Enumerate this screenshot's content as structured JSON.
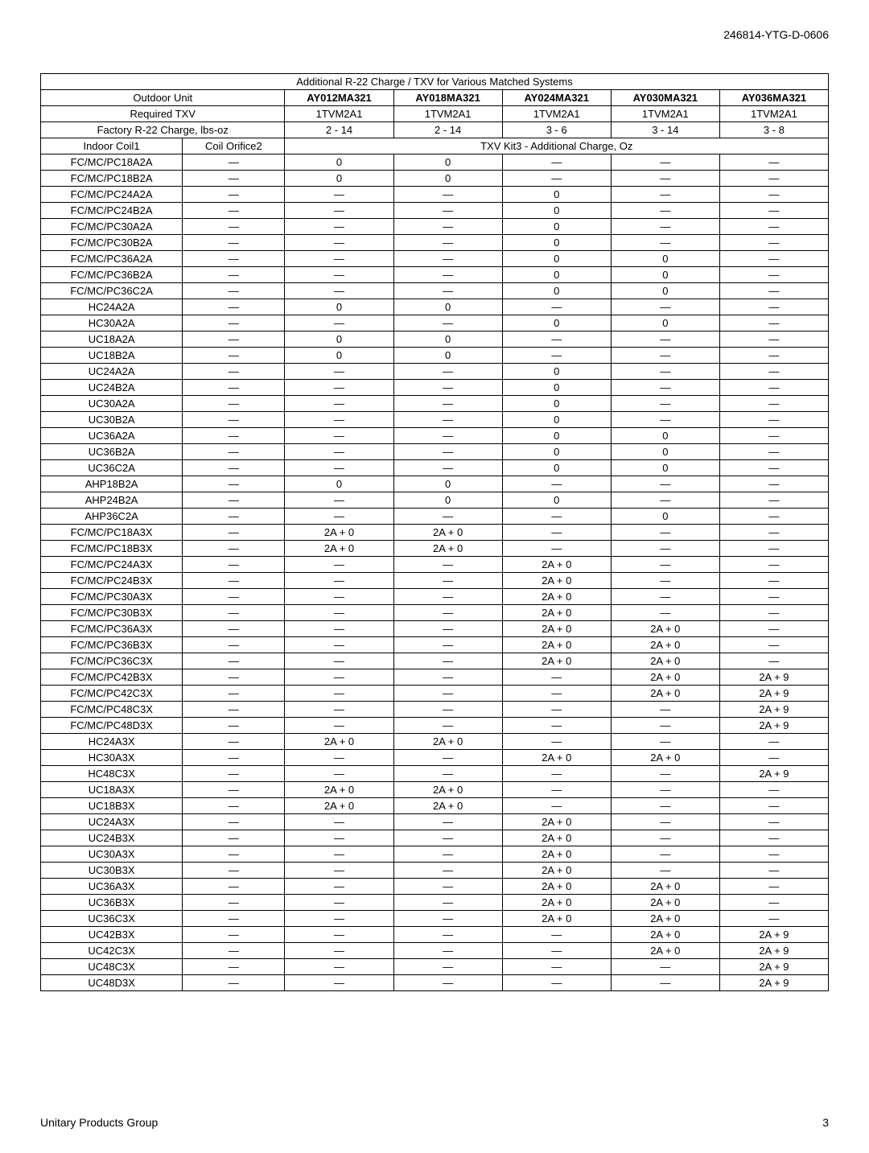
{
  "docId": "246814-YTG-D-0606",
  "footerLeft": "Unitary Products Group",
  "footerRight": "3",
  "dash": "—",
  "table": {
    "title": "Additional R-22 Charge / TXV for Various Matched Systems",
    "headerRows": [
      {
        "label": "Outdoor Unit",
        "cells": [
          "AY012MA321",
          "AY018MA321",
          "AY024MA321",
          "AY030MA321",
          "AY036MA321"
        ],
        "bold": true
      },
      {
        "label": "Required TXV",
        "cells": [
          "1TVM2A1",
          "1TVM2A1",
          "1TVM2A1",
          "1TVM2A1",
          "1TVM2A1"
        ],
        "bold": false
      },
      {
        "label": "Factory R-22 Charge, lbs-oz",
        "cells": [
          "2 - 14",
          "2 - 14",
          "3 - 6",
          "3 - 14",
          "3 - 8"
        ],
        "bold": false
      }
    ],
    "groupHeader": {
      "left": "Indoor Coil1",
      "mid": "Coil Orifice2",
      "right": "TXV Kit3 - Additional Charge, Oz"
    },
    "rows": [
      {
        "coil": "FC/MC/PC18A2A",
        "c": [
          "—",
          "0",
          "0",
          "—",
          "—",
          "—"
        ]
      },
      {
        "coil": "FC/MC/PC18B2A",
        "c": [
          "—",
          "0",
          "0",
          "—",
          "—",
          "—"
        ]
      },
      {
        "coil": "FC/MC/PC24A2A",
        "c": [
          "—",
          "—",
          "—",
          "0",
          "—",
          "—"
        ]
      },
      {
        "coil": "FC/MC/PC24B2A",
        "c": [
          "—",
          "—",
          "—",
          "0",
          "—",
          "—"
        ]
      },
      {
        "coil": "FC/MC/PC30A2A",
        "c": [
          "—",
          "—",
          "—",
          "0",
          "—",
          "—"
        ]
      },
      {
        "coil": "FC/MC/PC30B2A",
        "c": [
          "—",
          "—",
          "—",
          "0",
          "—",
          "—"
        ]
      },
      {
        "coil": "FC/MC/PC36A2A",
        "c": [
          "—",
          "—",
          "—",
          "0",
          "0",
          "—"
        ]
      },
      {
        "coil": "FC/MC/PC36B2A",
        "c": [
          "—",
          "—",
          "—",
          "0",
          "0",
          "—"
        ]
      },
      {
        "coil": "FC/MC/PC36C2A",
        "c": [
          "—",
          "—",
          "—",
          "0",
          "0",
          "—"
        ]
      },
      {
        "coil": "HC24A2A",
        "c": [
          "—",
          "0",
          "0",
          "—",
          "—",
          "—"
        ]
      },
      {
        "coil": "HC30A2A",
        "c": [
          "—",
          "—",
          "—",
          "0",
          "0",
          "—"
        ]
      },
      {
        "coil": "UC18A2A",
        "c": [
          "—",
          "0",
          "0",
          "—",
          "—",
          "—"
        ]
      },
      {
        "coil": "UC18B2A",
        "c": [
          "—",
          "0",
          "0",
          "—",
          "—",
          "—"
        ]
      },
      {
        "coil": "UC24A2A",
        "c": [
          "—",
          "—",
          "—",
          "0",
          "—",
          "—"
        ]
      },
      {
        "coil": "UC24B2A",
        "c": [
          "—",
          "—",
          "—",
          "0",
          "—",
          "—"
        ]
      },
      {
        "coil": "UC30A2A",
        "c": [
          "—",
          "—",
          "—",
          "0",
          "—",
          "—"
        ]
      },
      {
        "coil": "UC30B2A",
        "c": [
          "—",
          "—",
          "—",
          "0",
          "—",
          "—"
        ]
      },
      {
        "coil": "UC36A2A",
        "c": [
          "—",
          "—",
          "—",
          "0",
          "0",
          "—"
        ]
      },
      {
        "coil": "UC36B2A",
        "c": [
          "—",
          "—",
          "—",
          "0",
          "0",
          "—"
        ]
      },
      {
        "coil": "UC36C2A",
        "c": [
          "—",
          "—",
          "—",
          "0",
          "0",
          "—"
        ]
      },
      {
        "coil": "AHP18B2A",
        "c": [
          "—",
          "0",
          "0",
          "—",
          "—",
          "—"
        ]
      },
      {
        "coil": "AHP24B2A",
        "c": [
          "—",
          "—",
          "0",
          "0",
          "—",
          "—"
        ]
      },
      {
        "coil": "AHP36C2A",
        "c": [
          "—",
          "—",
          "—",
          "—",
          "0",
          "—"
        ]
      },
      {
        "coil": "FC/MC/PC18A3X",
        "c": [
          "—",
          "2A + 0",
          "2A + 0",
          "—",
          "—",
          "—"
        ]
      },
      {
        "coil": "FC/MC/PC18B3X",
        "c": [
          "—",
          "2A + 0",
          "2A + 0",
          "—",
          "—",
          "—"
        ]
      },
      {
        "coil": "FC/MC/PC24A3X",
        "c": [
          "—",
          "—",
          "—",
          "2A + 0",
          "—",
          "—"
        ]
      },
      {
        "coil": "FC/MC/PC24B3X",
        "c": [
          "—",
          "—",
          "—",
          "2A + 0",
          "—",
          "—"
        ]
      },
      {
        "coil": "FC/MC/PC30A3X",
        "c": [
          "—",
          "—",
          "—",
          "2A + 0",
          "—",
          "—"
        ]
      },
      {
        "coil": "FC/MC/PC30B3X",
        "c": [
          "—",
          "—",
          "—",
          "2A + 0",
          "—",
          "—"
        ]
      },
      {
        "coil": "FC/MC/PC36A3X",
        "c": [
          "—",
          "—",
          "—",
          "2A + 0",
          "2A + 0",
          "—"
        ]
      },
      {
        "coil": "FC/MC/PC36B3X",
        "c": [
          "—",
          "—",
          "—",
          "2A + 0",
          "2A + 0",
          "—"
        ]
      },
      {
        "coil": "FC/MC/PC36C3X",
        "c": [
          "—",
          "—",
          "—",
          "2A + 0",
          "2A + 0",
          "—"
        ]
      },
      {
        "coil": "FC/MC/PC42B3X",
        "c": [
          "—",
          "—",
          "—",
          "—",
          "2A + 0",
          "2A + 9"
        ]
      },
      {
        "coil": "FC/MC/PC42C3X",
        "c": [
          "—",
          "—",
          "—",
          "—",
          "2A + 0",
          "2A + 9"
        ]
      },
      {
        "coil": "FC/MC/PC48C3X",
        "c": [
          "—",
          "—",
          "—",
          "—",
          "—",
          "2A + 9"
        ]
      },
      {
        "coil": "FC/MC/PC48D3X",
        "c": [
          "—",
          "—",
          "—",
          "—",
          "—",
          "2A + 9"
        ]
      },
      {
        "coil": "HC24A3X",
        "c": [
          "—",
          "2A + 0",
          "2A + 0",
          "—",
          "—",
          "—"
        ]
      },
      {
        "coil": "HC30A3X",
        "c": [
          "—",
          "—",
          "—",
          "2A + 0",
          "2A + 0",
          "—"
        ]
      },
      {
        "coil": "HC48C3X",
        "c": [
          "—",
          "—",
          "—",
          "—",
          "—",
          "2A + 9"
        ]
      },
      {
        "coil": "UC18A3X",
        "c": [
          "—",
          "2A + 0",
          "2A + 0",
          "—",
          "—",
          "—"
        ]
      },
      {
        "coil": "UC18B3X",
        "c": [
          "—",
          "2A + 0",
          "2A + 0",
          "—",
          "—",
          "—"
        ]
      },
      {
        "coil": "UC24A3X",
        "c": [
          "—",
          "—",
          "—",
          "2A + 0",
          "—",
          "—"
        ]
      },
      {
        "coil": "UC24B3X",
        "c": [
          "—",
          "—",
          "—",
          "2A + 0",
          "—",
          "—"
        ]
      },
      {
        "coil": "UC30A3X",
        "c": [
          "—",
          "—",
          "—",
          "2A + 0",
          "—",
          "—"
        ]
      },
      {
        "coil": "UC30B3X",
        "c": [
          "—",
          "—",
          "—",
          "2A + 0",
          "—",
          "—"
        ]
      },
      {
        "coil": "UC36A3X",
        "c": [
          "—",
          "—",
          "—",
          "2A + 0",
          "2A + 0",
          "—"
        ]
      },
      {
        "coil": "UC36B3X",
        "c": [
          "—",
          "—",
          "—",
          "2A + 0",
          "2A + 0",
          "—"
        ]
      },
      {
        "coil": "UC36C3X",
        "c": [
          "—",
          "—",
          "—",
          "2A + 0",
          "2A + 0",
          "—"
        ]
      },
      {
        "coil": "UC42B3X",
        "c": [
          "—",
          "—",
          "—",
          "—",
          "2A + 0",
          "2A + 9"
        ]
      },
      {
        "coil": "UC42C3X",
        "c": [
          "—",
          "—",
          "—",
          "—",
          "2A + 0",
          "2A + 9"
        ]
      },
      {
        "coil": "UC48C3X",
        "c": [
          "—",
          "—",
          "—",
          "—",
          "—",
          "2A + 9"
        ]
      },
      {
        "coil": "UC48D3X",
        "c": [
          "—",
          "—",
          "—",
          "—",
          "—",
          "2A + 9"
        ]
      }
    ]
  }
}
